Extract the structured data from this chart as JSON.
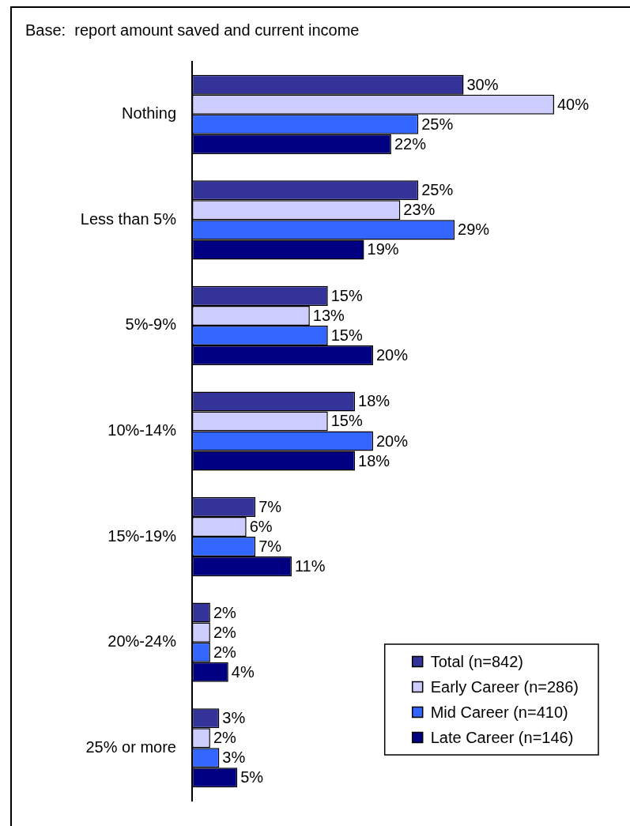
{
  "chart_data": {
    "type": "bar",
    "orientation": "horizontal",
    "title": "Base:  report amount saved and current income",
    "categories": [
      "Nothing",
      "Less than 5%",
      "5%-9%",
      "10%-14%",
      "15%-19%",
      "20%-24%",
      "25% or more"
    ],
    "series": [
      {
        "name": "Total (n=842)",
        "color": "#333399",
        "values": [
          30,
          25,
          15,
          18,
          7,
          2,
          3
        ],
        "value_labels": [
          "30%",
          "25%",
          "15%",
          "18%",
          "7%",
          "2%",
          "3%"
        ]
      },
      {
        "name": "Early Career (n=286)",
        "color": "#ccccff",
        "values": [
          40,
          23,
          13,
          15,
          6,
          2,
          2
        ],
        "value_labels": [
          "40%",
          "23%",
          "13%",
          "15%",
          "6%",
          "2%",
          "2%"
        ]
      },
      {
        "name": "Mid Career (n=410)",
        "color": "#3366ff",
        "values": [
          25,
          29,
          15,
          20,
          7,
          2,
          3
        ],
        "value_labels": [
          "25%",
          "29%",
          "15%",
          "20%",
          "7%",
          "2%",
          "3%"
        ]
      },
      {
        "name": "Late Career (n=146)",
        "color": "#000080",
        "values": [
          22,
          19,
          20,
          18,
          11,
          4,
          5
        ],
        "value_labels": [
          "22%",
          "19%",
          "20%",
          "18%",
          "11%",
          "4%",
          "5%"
        ]
      }
    ],
    "legend": "bottom right",
    "tick_labels": "y"
  }
}
